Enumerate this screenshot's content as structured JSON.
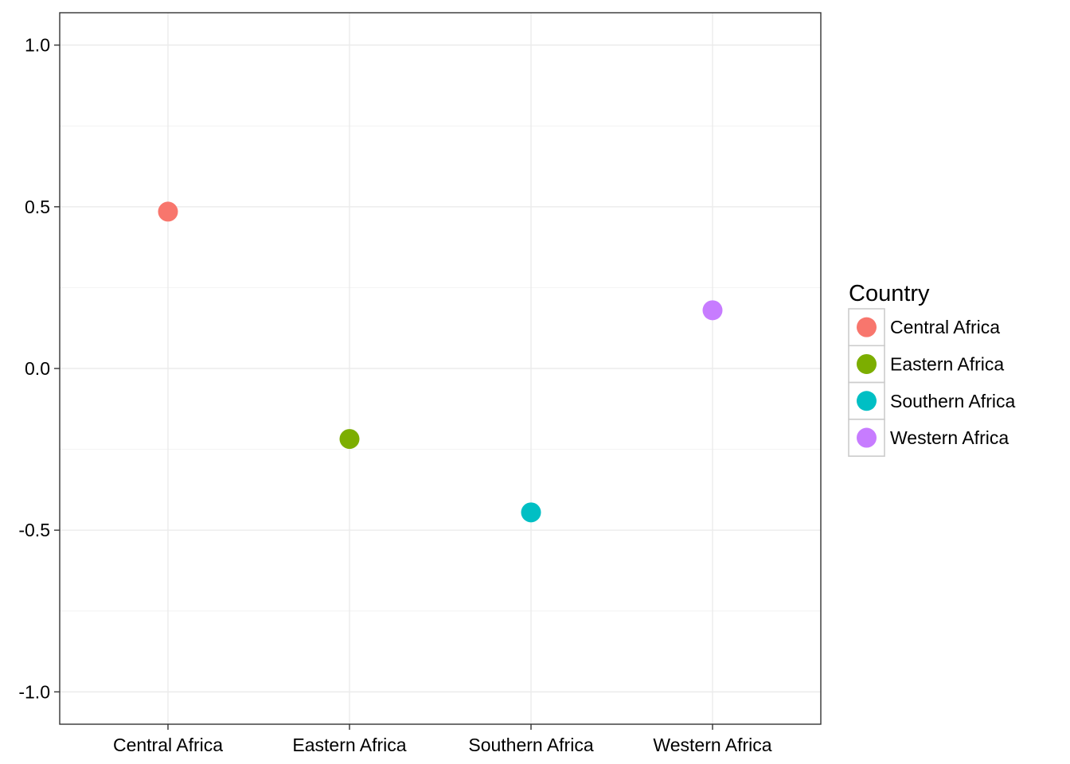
{
  "chart_data": {
    "type": "scatter",
    "categories": [
      "Central Africa",
      "Eastern Africa",
      "Southern Africa",
      "Western Africa"
    ],
    "series": [
      {
        "name": "Central Africa",
        "x": "Central Africa",
        "y": 0.485,
        "color": "#F8766D"
      },
      {
        "name": "Eastern Africa",
        "x": "Eastern Africa",
        "y": -0.218,
        "color": "#7CAE00"
      },
      {
        "name": "Southern Africa",
        "x": "Southern Africa",
        "y": -0.445,
        "color": "#00BFC4"
      },
      {
        "name": "Western Africa",
        "x": "Western Africa",
        "y": 0.18,
        "color": "#C77CFF"
      }
    ],
    "y_ticks": [
      "1.0",
      "0.5",
      "0.0",
      "-0.5",
      "-1.0"
    ],
    "ylim": [
      -1.1,
      1.1
    ],
    "grid": true,
    "legend": {
      "title": "Country",
      "placement": "right",
      "entries": [
        "Central Africa",
        "Eastern Africa",
        "Southern Africa",
        "Western Africa"
      ]
    },
    "title": "",
    "xlabel": "",
    "ylabel": ""
  }
}
